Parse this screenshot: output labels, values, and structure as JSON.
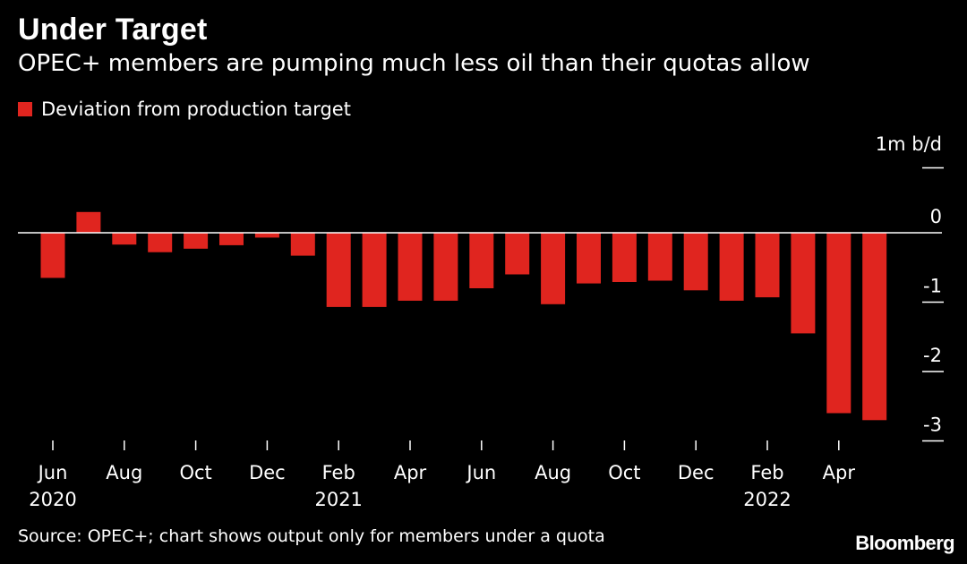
{
  "title": "Under Target",
  "subtitle": "OPEC+ members are pumping much less oil than their quotas allow",
  "legend": {
    "label": "Deviation from production target",
    "color": "#e0251f"
  },
  "source": "Source: OPEC+; chart shows output only for members under a quota",
  "brand": "Bloomberg",
  "chart_data": {
    "type": "bar",
    "title": "Under Target",
    "subtitle": "OPEC+ members are pumping much less oil than their quotas allow",
    "unit_label": "1m b/d",
    "ylabel": "",
    "xlabel": "",
    "ylim": [
      -3.2,
      1
    ],
    "y_ticks": [
      0,
      -1,
      -2,
      -3
    ],
    "y_tick_labels": [
      "0",
      "-1",
      "-2",
      "-3"
    ],
    "grid": false,
    "legend_position": "top-left",
    "categories": [
      "Jun 2020",
      "Jul 2020",
      "Aug 2020",
      "Sep 2020",
      "Oct 2020",
      "Nov 2020",
      "Dec 2020",
      "Jan 2021",
      "Feb 2021",
      "Mar 2021",
      "Apr 2021",
      "May 2021",
      "Jun 2021",
      "Jul 2021",
      "Aug 2021",
      "Sep 2021",
      "Oct 2021",
      "Nov 2021",
      "Dec 2021",
      "Jan 2022",
      "Feb 2022",
      "Mar 2022",
      "Apr 2022",
      "May 2022"
    ],
    "series": [
      {
        "name": "Deviation from production target",
        "values": [
          -0.65,
          0.3,
          -0.17,
          -0.28,
          -0.23,
          -0.18,
          -0.07,
          -0.33,
          -1.07,
          -1.07,
          -0.98,
          -0.98,
          -0.8,
          -0.6,
          -1.03,
          -0.73,
          -0.71,
          -0.69,
          -0.83,
          -0.98,
          -0.93,
          -1.45,
          -2.6,
          -2.7
        ]
      }
    ],
    "x_tick_labels": [
      {
        "index": 0,
        "month": "Jun",
        "year": "2020"
      },
      {
        "index": 2,
        "month": "Aug",
        "year": ""
      },
      {
        "index": 4,
        "month": "Oct",
        "year": ""
      },
      {
        "index": 6,
        "month": "Dec",
        "year": ""
      },
      {
        "index": 8,
        "month": "Feb",
        "year": "2021"
      },
      {
        "index": 10,
        "month": "Apr",
        "year": ""
      },
      {
        "index": 12,
        "month": "Jun",
        "year": ""
      },
      {
        "index": 14,
        "month": "Aug",
        "year": ""
      },
      {
        "index": 16,
        "month": "Oct",
        "year": ""
      },
      {
        "index": 18,
        "month": "Dec",
        "year": ""
      },
      {
        "index": 20,
        "month": "Feb",
        "year": "2022"
      },
      {
        "index": 22,
        "month": "Apr",
        "year": ""
      }
    ]
  }
}
